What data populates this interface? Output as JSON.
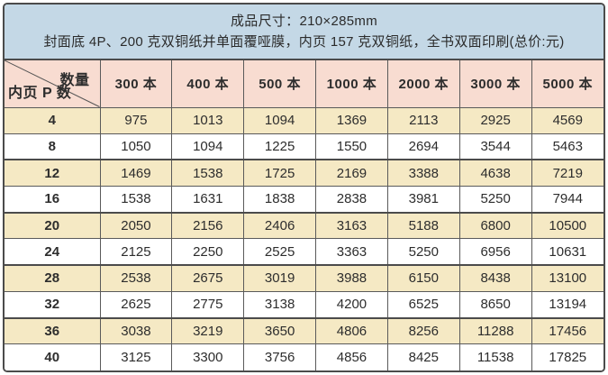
{
  "banner": {
    "line1": "成品尺寸：210×285mm",
    "line2": "封面底 4P、200 克双铜纸并单面覆哑膜，内页 157 克双铜纸，全书双面印刷(总价:元)"
  },
  "price_table": {
    "corner": {
      "top": "数量",
      "bottom": "内页 P 数"
    },
    "columns": [
      "300 本",
      "400 本",
      "500 本",
      "1000 本",
      "2000 本",
      "3000 本",
      "5000 本"
    ],
    "rows": [
      {
        "pages": "4",
        "prices": [
          "975",
          "1013",
          "1094",
          "1369",
          "2113",
          "2925",
          "4569"
        ]
      },
      {
        "pages": "8",
        "prices": [
          "1050",
          "1094",
          "1225",
          "1550",
          "2694",
          "3544",
          "5463"
        ]
      },
      {
        "pages": "12",
        "prices": [
          "1469",
          "1538",
          "1725",
          "2169",
          "3388",
          "4638",
          "7219"
        ]
      },
      {
        "pages": "16",
        "prices": [
          "1538",
          "1631",
          "1838",
          "2838",
          "3981",
          "5250",
          "7944"
        ]
      },
      {
        "pages": "20",
        "prices": [
          "2050",
          "2156",
          "2406",
          "3163",
          "5188",
          "6800",
          "10500"
        ]
      },
      {
        "pages": "24",
        "prices": [
          "2125",
          "2250",
          "2525",
          "3363",
          "5250",
          "6956",
          "10631"
        ]
      },
      {
        "pages": "28",
        "prices": [
          "2538",
          "2675",
          "3019",
          "3988",
          "6150",
          "8438",
          "13100"
        ]
      },
      {
        "pages": "32",
        "prices": [
          "2625",
          "2775",
          "3138",
          "4200",
          "6525",
          "8650",
          "13194"
        ]
      },
      {
        "pages": "36",
        "prices": [
          "3038",
          "3219",
          "3650",
          "4806",
          "8256",
          "11288",
          "17456"
        ]
      },
      {
        "pages": "40",
        "prices": [
          "3125",
          "3300",
          "3756",
          "4856",
          "8425",
          "11538",
          "17825"
        ]
      }
    ]
  },
  "colors": {
    "banner_bg": "#c4d8e6",
    "header_bg": "#f8dcd1",
    "row_alt_bg": "#f5e9c4",
    "row_bg": "#ffffff",
    "border": "#5a5a5a",
    "border_strong": "#4b4b4b",
    "diagonal_line": "#555555"
  }
}
